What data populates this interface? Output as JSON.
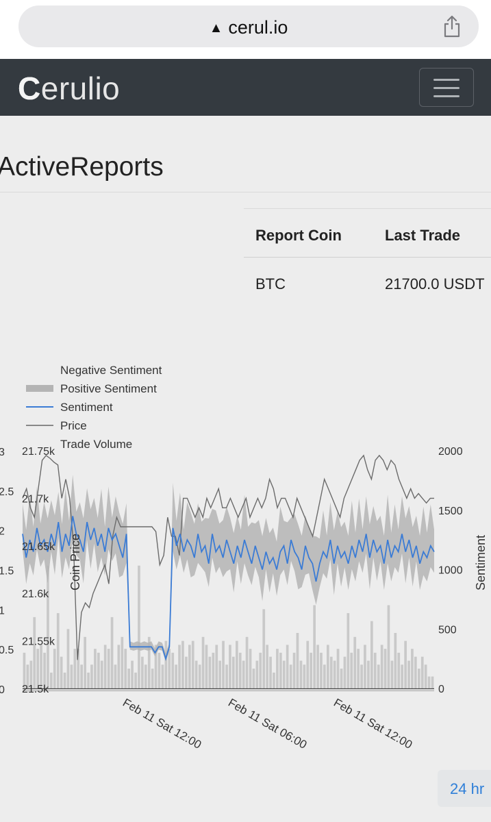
{
  "browser": {
    "url": "cerul.io"
  },
  "navbar": {
    "brand_first": "C",
    "brand_rest": "erulio"
  },
  "page": {
    "title": "ActiveReports"
  },
  "table": {
    "headers": [
      "Report Coin",
      "Last Trade"
    ],
    "rows": [
      {
        "coin": "BTC",
        "last_trade": "21700.0 USDT"
      }
    ]
  },
  "controls": {
    "range_label": "24 hr"
  },
  "chart_data": {
    "type": "line",
    "legend": [
      {
        "name": "Negative Sentiment",
        "kind": "area"
      },
      {
        "name": "Positive Sentiment",
        "kind": "area"
      },
      {
        "name": "Sentiment",
        "kind": "line",
        "color": "#3a7bd5"
      },
      {
        "name": "Price",
        "kind": "line",
        "color": "#666666"
      },
      {
        "name": "Trade Volume",
        "kind": "bar",
        "color": "#c8c8c8"
      }
    ],
    "legend_position": "top-left",
    "axes": {
      "y_left_volume": {
        "ticks": [
          "0",
          "0.5",
          "1",
          "1.5",
          "2",
          "2.5",
          "3"
        ],
        "range": [
          0,
          3
        ]
      },
      "y_left_price": {
        "label": "Coin Price",
        "ticks": [
          "21.5k",
          "21.55k",
          "21.6k",
          "21.65k",
          "21.7k",
          "21.75k"
        ],
        "range": [
          21500,
          21750
        ]
      },
      "y_right_sentiment": {
        "label": "Sentiment",
        "ticks": [
          "0",
          "500",
          "1000",
          "1500",
          "2000"
        ],
        "range": [
          0,
          2000
        ]
      },
      "x": {
        "ticks": [
          "Feb 11 Sat 12:00",
          "Feb 11 Sat 06:00",
          "Feb 11 Sat 12:00"
        ]
      }
    },
    "grid": false,
    "sentiment": [
      1300,
      1100,
      1250,
      1150,
      1350,
      1200,
      1250,
      1150,
      1300,
      1200,
      1400,
      1150,
      1300,
      1200,
      1450,
      1300,
      1250,
      1150,
      1400,
      1250,
      1350,
      1200,
      1300,
      1150,
      1350,
      1250,
      1300,
      1200,
      1100,
      1300,
      350,
      350,
      350,
      350,
      350,
      350,
      350,
      300,
      350,
      350,
      250,
      350,
      1350,
      1200,
      1300,
      1150,
      1250,
      1200,
      1100,
      1300,
      1150,
      1200,
      1050,
      1300,
      1150,
      1200,
      1100,
      1250,
      1150,
      1050,
      1200,
      1100,
      1250,
      1150,
      1050,
      1200,
      1100,
      1000,
      1150,
      1050,
      1100,
      1000,
      1150,
      1200,
      1050,
      1250,
      1150,
      1100,
      1000,
      1200,
      1100,
      1050,
      900,
      1050,
      1150,
      1100,
      1250,
      1050,
      1200,
      1100,
      1150,
      1050,
      1200,
      1100,
      1250,
      1150,
      1300,
      1100,
      1250,
      1150,
      1200,
      1050,
      1250,
      1100,
      1200,
      1150,
      1300,
      1150,
      1250,
      1100,
      1200,
      1050,
      1150,
      1100,
      1200,
      1150
    ],
    "price": [
      21700,
      21710,
      21690,
      21680,
      21710,
      21740,
      21745,
      21742,
      21738,
      21735,
      21700,
      21720,
      21700,
      21650,
      21530,
      21580,
      21590,
      21585,
      21600,
      21610,
      21620,
      21630,
      21610,
      21660,
      21680,
      21670,
      21670,
      21670,
      21670,
      21670,
      21670,
      21670,
      21670,
      21670,
      21665,
      21630,
      21640,
      21680,
      21660,
      21660,
      21640,
      21700,
      21700,
      21690,
      21680,
      21690,
      21680,
      21700,
      21690,
      21700,
      21710,
      21690,
      21690,
      21700,
      21690,
      21680,
      21690,
      21700,
      21680,
      21690,
      21700,
      21690,
      21700,
      21720,
      21710,
      21690,
      21700,
      21700,
      21690,
      21680,
      21700,
      21690,
      21680,
      21670,
      21660,
      21680,
      21700,
      21720,
      21710,
      21700,
      21690,
      21680,
      21700,
      21710,
      21720,
      21730,
      21740,
      21745,
      21730,
      21720,
      21740,
      21745,
      21740,
      21730,
      21740,
      21735,
      21720,
      21710,
      21700,
      21710,
      21700,
      21705,
      21700,
      21695,
      21700,
      21700
    ],
    "volume": [
      0.45,
      0.3,
      0.35,
      0.9,
      0.5,
      0.55,
      0.45,
      1.55,
      0.2,
      0.5,
      0.95,
      0.4,
      0.2,
      0.75,
      0.3,
      0.5,
      0.5,
      0.3,
      0.65,
      0.2,
      0.3,
      0.5,
      0.45,
      0.35,
      0.55,
      0.5,
      0.9,
      0.3,
      0.55,
      0.65,
      0.5,
      0.25,
      0.35,
      0.2,
      1.55,
      0.4,
      0.3,
      0.65,
      0.25,
      0.55,
      0.45,
      0.3,
      0.6,
      0.5,
      0.45,
      0.3,
      0.55,
      0.6,
      0.4,
      0.55,
      0.6,
      0.35,
      0.3,
      0.65,
      0.55,
      0.4,
      0.45,
      0.55,
      0.35,
      0.6,
      0.3,
      0.55,
      0.4,
      0.6,
      0.45,
      0.35,
      0.65,
      0.5,
      0.25,
      0.35,
      0.45,
      1.0,
      0.55,
      0.4,
      0.2,
      0.5,
      0.45,
      0.35,
      0.55,
      0.3,
      0.45,
      0.7,
      0.35,
      0.3,
      0.6,
      0.45,
      1.05,
      0.55,
      0.45,
      0.3,
      0.55,
      0.4,
      0.35,
      0.5,
      0.25,
      0.4,
      0.95,
      0.45,
      0.65,
      0.5,
      0.3,
      0.55,
      0.35,
      0.85,
      0.45,
      0.3,
      0.55,
      0.5,
      1.05,
      0.35,
      0.7,
      0.45,
      0.3,
      0.6,
      0.35,
      0.5,
      0.4,
      0.25,
      0.4,
      0.3,
      0.15,
      0.15
    ]
  }
}
